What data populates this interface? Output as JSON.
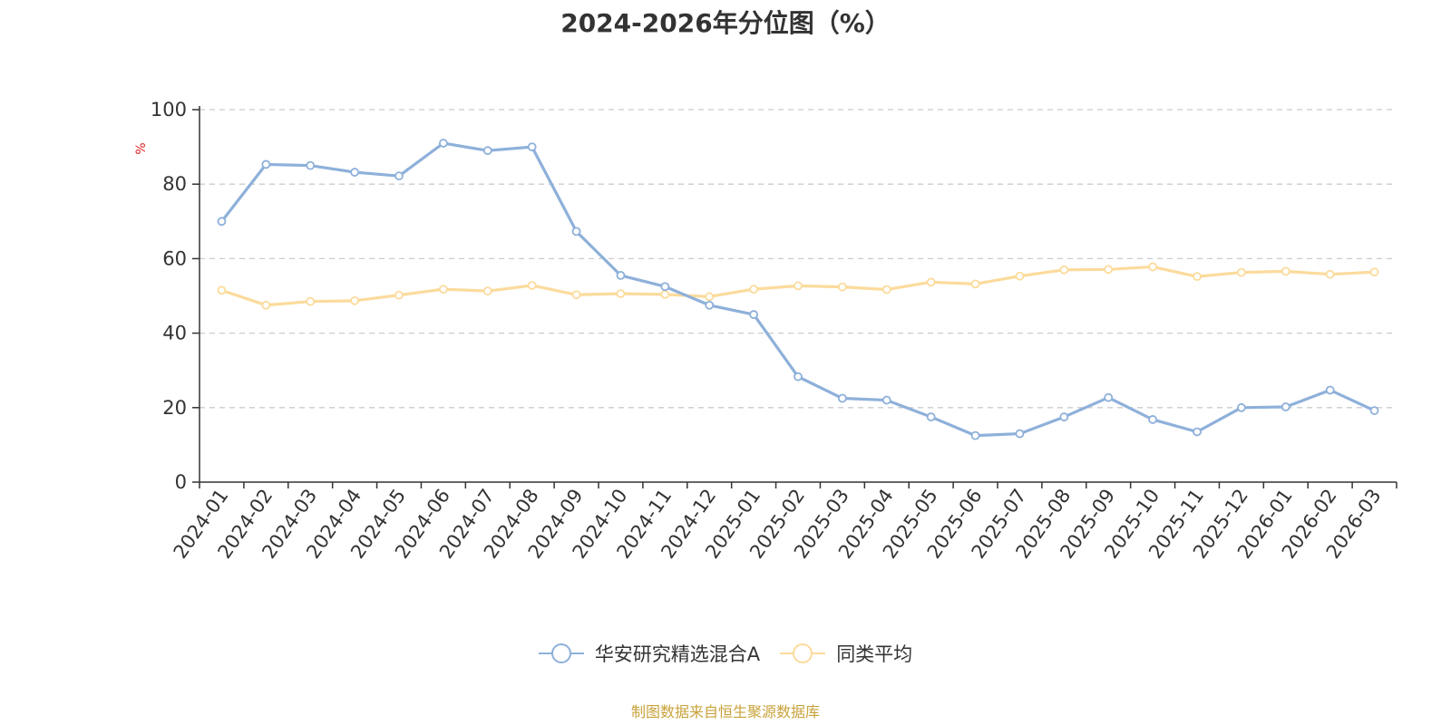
{
  "title": "2024-2026年分位图（%）",
  "footer": "制图数据来自恒生聚源数据库",
  "chart_data": {
    "type": "line",
    "title": "2024-2026年分位图（%）",
    "ylabel": "%",
    "ylim": [
      0,
      100
    ],
    "yticks": [
      0,
      20,
      40,
      60,
      80,
      100
    ],
    "grid": true,
    "legend_position": "bottom",
    "categories": [
      "2024-01",
      "2024-02",
      "2024-03",
      "2024-04",
      "2024-05",
      "2024-06",
      "2024-07",
      "2024-08",
      "2024-09",
      "2024-10",
      "2024-11",
      "2024-12",
      "2025-01",
      "2025-02",
      "2025-03",
      "2025-04",
      "2025-05",
      "2025-06",
      "2025-07",
      "2025-08",
      "2025-09",
      "2025-10",
      "2025-11",
      "2025-12",
      "2026-01",
      "2026-02",
      "2026-03"
    ],
    "series": [
      {
        "name": "华安研究精选混合A",
        "color": "#8eb0da",
        "values": [
          70,
          85.3,
          85,
          83.2,
          82.2,
          91,
          89,
          90,
          67.3,
          55.5,
          52.5,
          47.5,
          45,
          28.3,
          22.5,
          22,
          17.5,
          12.5,
          13,
          17.5,
          22.7,
          16.8,
          13.5,
          20,
          20.2,
          24.7,
          19.2
        ]
      },
      {
        "name": "同类平均",
        "color": "#fbdb9c",
        "values": [
          51.5,
          47.5,
          48.5,
          48.7,
          50.2,
          51.8,
          51.3,
          52.8,
          50.3,
          50.6,
          50.4,
          49.8,
          51.8,
          52.7,
          52.4,
          51.7,
          53.7,
          53.2,
          55.3,
          57,
          57.1,
          57.8,
          55.2,
          56.3,
          56.6,
          55.8,
          56.4
        ]
      }
    ]
  }
}
